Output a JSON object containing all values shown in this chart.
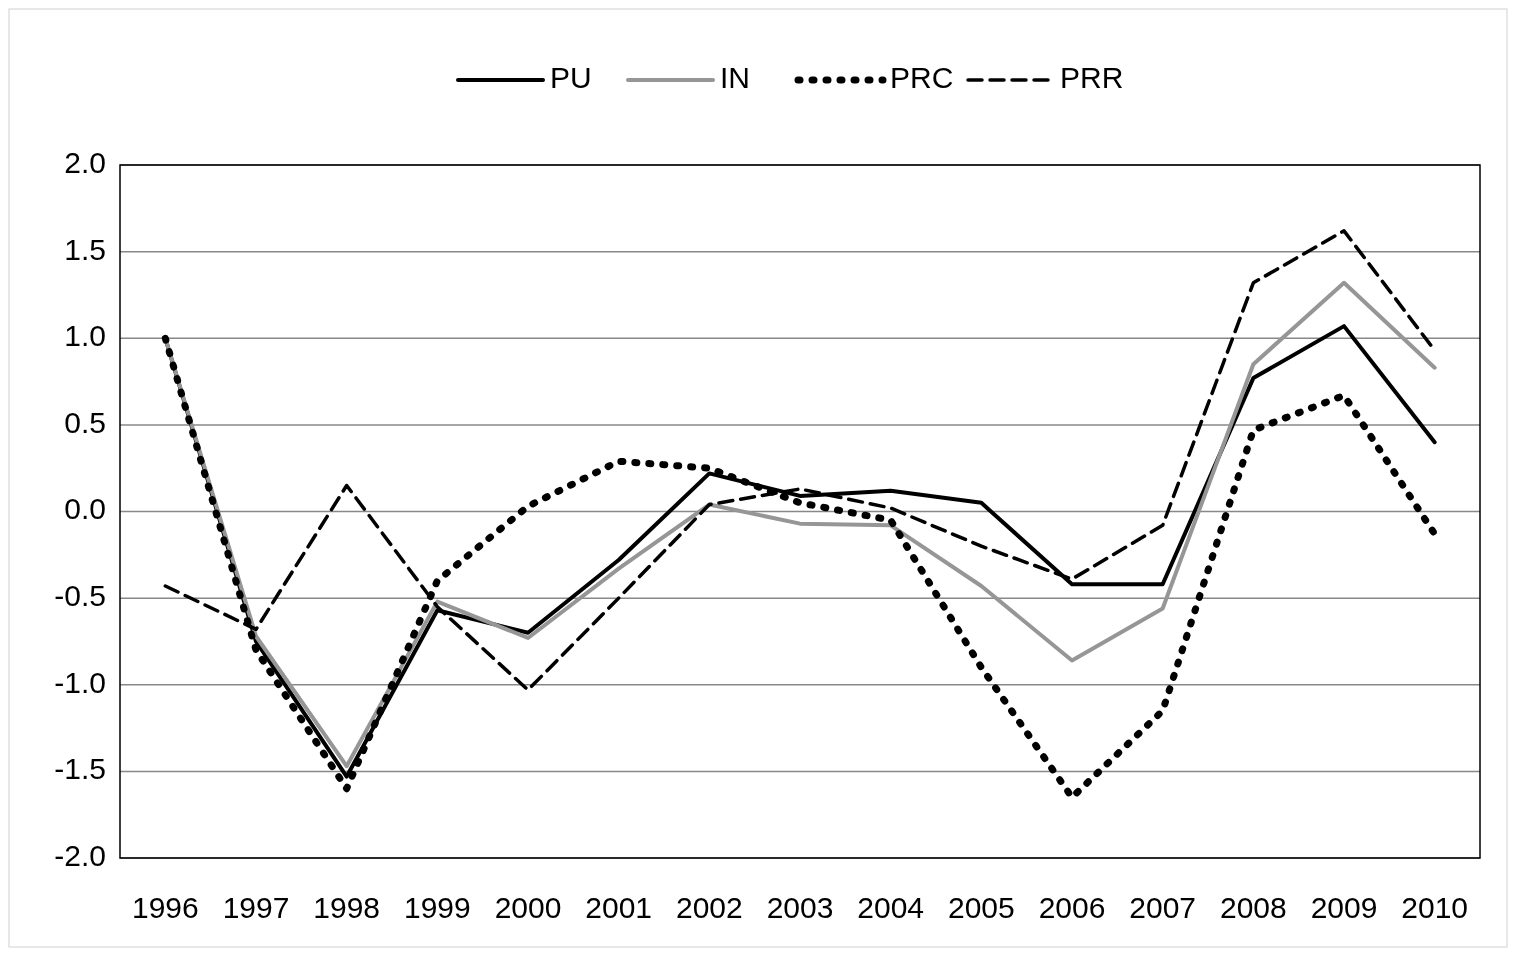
{
  "chart_data": {
    "type": "line",
    "categories": [
      "1996",
      "1997",
      "1998",
      "1999",
      "2000",
      "2001",
      "2002",
      "2003",
      "2004",
      "2005",
      "2006",
      "2007",
      "2008",
      "2009",
      "2010"
    ],
    "series": [
      {
        "name": "PU",
        "color": "#000000",
        "line_style": "solid",
        "values": [
          1.0,
          -0.75,
          -1.53,
          -0.57,
          -0.7,
          -0.28,
          0.22,
          0.09,
          0.12,
          0.05,
          -0.42,
          -0.42,
          0.77,
          1.07,
          0.4
        ]
      },
      {
        "name": "IN",
        "color": "#969696",
        "line_style": "solid",
        "values": [
          1.0,
          -0.72,
          -1.47,
          -0.52,
          -0.73,
          -0.33,
          0.04,
          -0.07,
          -0.08,
          -0.43,
          -0.86,
          -0.56,
          0.85,
          1.32,
          0.83
        ]
      },
      {
        "name": "PRC",
        "color": "#000000",
        "line_style": "dotted",
        "values": [
          1.0,
          -0.8,
          -1.6,
          -0.4,
          0.03,
          0.29,
          0.25,
          0.05,
          -0.05,
          -0.9,
          -1.65,
          -1.15,
          0.47,
          0.67,
          -0.13
        ]
      },
      {
        "name": "PRR",
        "color": "#000000",
        "line_style": "dashed",
        "values": [
          -0.43,
          -0.68,
          0.15,
          -0.55,
          -1.03,
          -0.5,
          0.04,
          0.13,
          0.02,
          -0.2,
          -0.39,
          -0.08,
          1.32,
          1.62,
          0.93
        ]
      }
    ],
    "ylim": [
      -2.0,
      2.0
    ],
    "yticks": [
      {
        "value": -2,
        "label": "-2.0"
      },
      {
        "value": -1.5,
        "label": "-1.5"
      },
      {
        "value": -1,
        "label": "-1.0"
      },
      {
        "value": -0.5,
        "label": "-0.5"
      },
      {
        "value": 0,
        "label": "0.0"
      },
      {
        "value": 0.5,
        "label": "0.5"
      },
      {
        "value": 1,
        "label": "1.0"
      },
      {
        "value": 1.5,
        "label": "1.5"
      },
      {
        "value": 2,
        "label": "2.0"
      }
    ],
    "grid": "y",
    "legend": "top",
    "marker": "none"
  }
}
